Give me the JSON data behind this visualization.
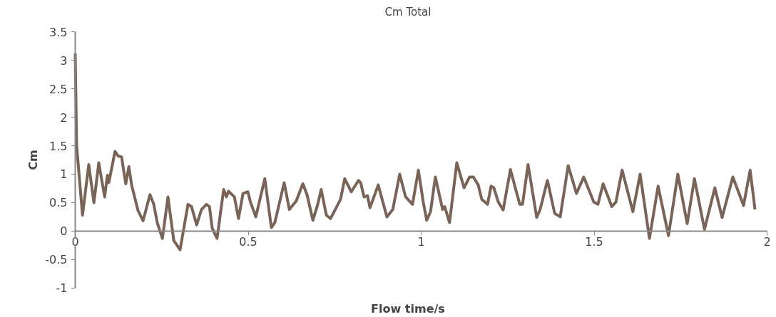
{
  "chart_data": {
    "type": "line",
    "title": "Cm Total",
    "xlabel": "Flow time/s",
    "ylabel": "Cm",
    "x": [
      0,
      0.004,
      0.021,
      0.039,
      0.054,
      0.068,
      0.085,
      0.093,
      0.097,
      0.115,
      0.124,
      0.134,
      0.146,
      0.155,
      0.163,
      0.181,
      0.196,
      0.216,
      0.227,
      0.237,
      0.252,
      0.268,
      0.285,
      0.303,
      0.326,
      0.336,
      0.351,
      0.365,
      0.379,
      0.388,
      0.396,
      0.41,
      0.429,
      0.437,
      0.443,
      0.46,
      0.472,
      0.485,
      0.499,
      0.507,
      0.522,
      0.548,
      0.567,
      0.577,
      0.604,
      0.619,
      0.639,
      0.658,
      0.67,
      0.687,
      0.701,
      0.711,
      0.726,
      0.738,
      0.767,
      0.779,
      0.798,
      0.819,
      0.825,
      0.835,
      0.845,
      0.852,
      0.876,
      0.887,
      0.901,
      0.918,
      0.938,
      0.955,
      0.975,
      0.992,
      1.006,
      1.016,
      1.027,
      1.041,
      1.062,
      1.068,
      1.082,
      1.103,
      1.124,
      1.14,
      1.151,
      1.165,
      1.175,
      1.192,
      1.202,
      1.21,
      1.223,
      1.237,
      1.258,
      1.285,
      1.293,
      1.309,
      1.334,
      1.344,
      1.365,
      1.386,
      1.402,
      1.425,
      1.449,
      1.47,
      1.499,
      1.511,
      1.526,
      1.551,
      1.563,
      1.581,
      1.612,
      1.633,
      1.66,
      1.685,
      1.715,
      1.742,
      1.769,
      1.79,
      1.819,
      1.849,
      1.87,
      1.901,
      1.932,
      1.951,
      1.965
    ],
    "series": [
      {
        "color": "#7a6357",
        "values": [
          3.12,
          1.5,
          0.28,
          1.17,
          0.5,
          1.2,
          0.6,
          0.98,
          0.85,
          1.4,
          1.32,
          1.3,
          0.83,
          1.13,
          0.81,
          0.37,
          0.18,
          0.64,
          0.47,
          0.15,
          -0.13,
          0.6,
          -0.17,
          -0.33,
          0.47,
          0.43,
          0.11,
          0.38,
          0.47,
          0.43,
          0.05,
          -0.13,
          0.73,
          0.6,
          0.7,
          0.6,
          0.22,
          0.66,
          0.69,
          0.5,
          0.25,
          0.92,
          0.06,
          0.15,
          0.85,
          0.38,
          0.53,
          0.83,
          0.64,
          0.19,
          0.47,
          0.73,
          0.28,
          0.22,
          0.56,
          0.92,
          0.69,
          0.89,
          0.85,
          0.6,
          0.62,
          0.41,
          0.81,
          0.56,
          0.25,
          0.38,
          1.0,
          0.6,
          0.47,
          1.07,
          0.51,
          0.19,
          0.34,
          0.95,
          0.38,
          0.43,
          0.15,
          1.2,
          0.76,
          0.95,
          0.95,
          0.81,
          0.56,
          0.47,
          0.79,
          0.76,
          0.51,
          0.37,
          1.08,
          0.47,
          0.47,
          1.17,
          0.24,
          0.38,
          0.89,
          0.31,
          0.25,
          1.15,
          0.66,
          0.95,
          0.51,
          0.47,
          0.83,
          0.43,
          0.51,
          1.07,
          0.34,
          1.0,
          -0.13,
          0.79,
          -0.08,
          1.0,
          0.13,
          0.92,
          0.03,
          0.76,
          0.24,
          0.95,
          0.45,
          1.07,
          0.38
        ]
      }
    ],
    "xlim": [
      0,
      2
    ],
    "ylim": [
      -1,
      3.5
    ],
    "xticks": [
      0,
      0.5,
      1,
      1.5,
      2
    ],
    "yticks": [
      -1,
      -0.5,
      0,
      0.5,
      1,
      1.5,
      2,
      2.5,
      3,
      3.5
    ],
    "grid": false,
    "line_style": "solid"
  }
}
